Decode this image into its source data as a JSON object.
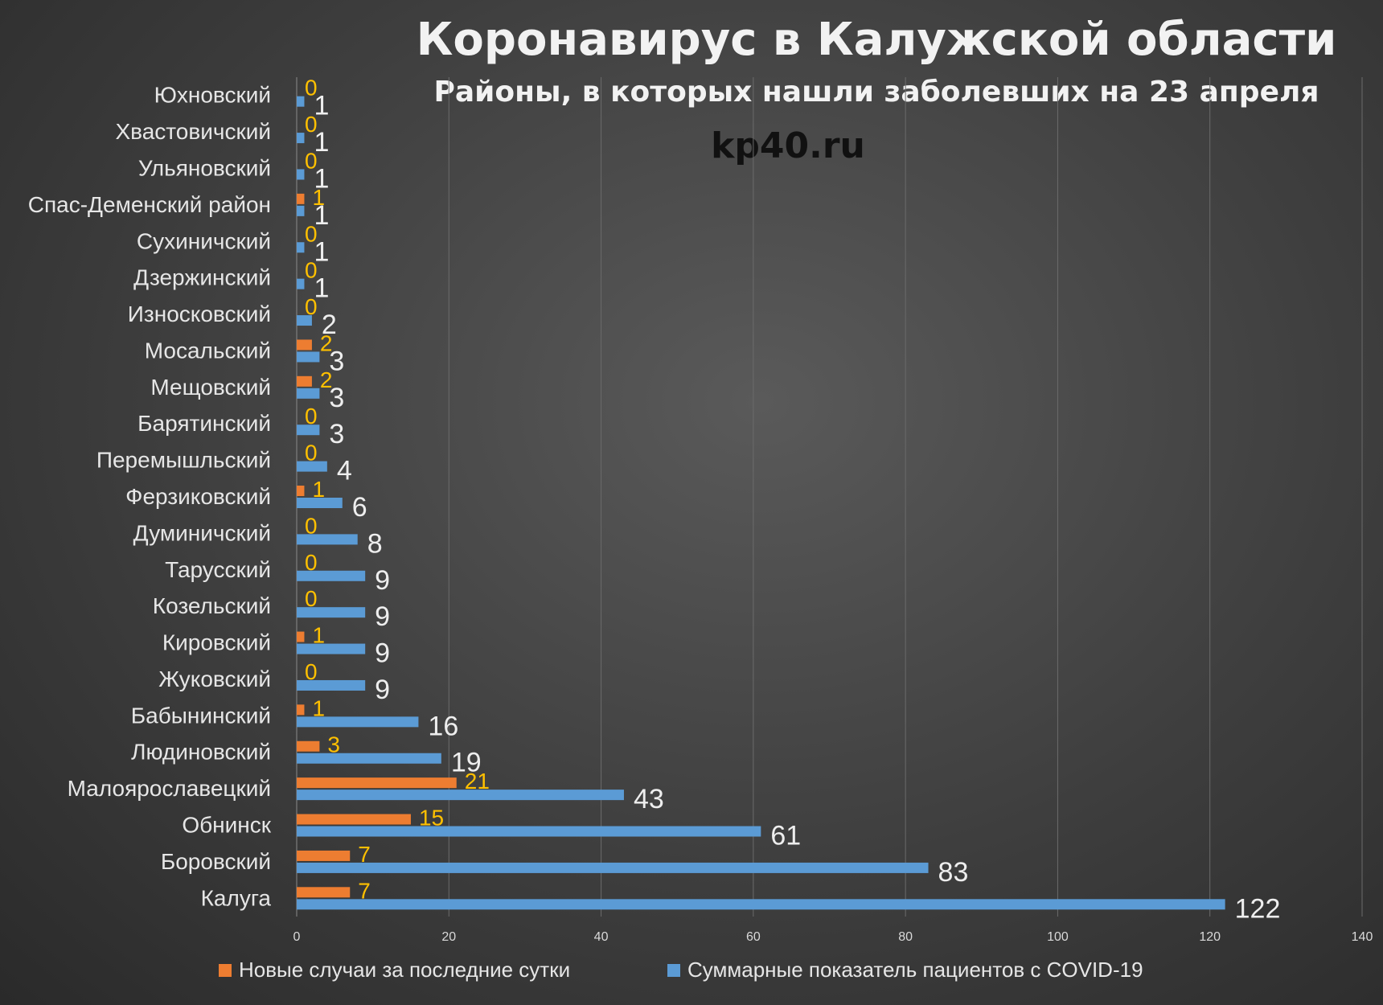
{
  "chart_data": {
    "type": "bar",
    "orientation": "horizontal",
    "title": "Коронавирус в Калужской области",
    "subtitle": "Районы, в которых нашли заболевших на 23 апреля",
    "watermark": "kp40.ru",
    "categories": [
      "Юхновский",
      "Хвастовичский",
      "Ульяновский",
      "Спас-Деменский район",
      "Сухиничский",
      "Дзержинский",
      "Износковский",
      "Мосальский",
      "Мещовский",
      "Барятинский",
      "Перемышльский",
      "Ферзиковский",
      "Думиничский",
      "Тарусский",
      "Козельский",
      "Кировский",
      "Жуковский",
      "Бабынинский",
      "Людиновский",
      "Малоярославецкий",
      "Обнинск",
      "Боровский",
      "Калуга"
    ],
    "series": [
      {
        "name": "Новые случаи за последние сутки",
        "color": "#ed7d31",
        "label_color": "#ffc000",
        "values": [
          0,
          0,
          0,
          1,
          0,
          0,
          0,
          2,
          2,
          0,
          0,
          1,
          0,
          0,
          0,
          1,
          0,
          1,
          3,
          21,
          15,
          7,
          7
        ]
      },
      {
        "name": "Суммарные показатель пациентов с COVID-19",
        "color": "#5b9bd5",
        "label_color": "#eeeeee",
        "values": [
          1,
          1,
          1,
          1,
          1,
          1,
          2,
          3,
          3,
          3,
          4,
          6,
          8,
          9,
          9,
          9,
          9,
          16,
          19,
          43,
          61,
          83,
          122
        ]
      }
    ],
    "xlim": [
      0,
      140
    ],
    "xticks": [
      0,
      20,
      40,
      60,
      80,
      100,
      120,
      140
    ],
    "grid": true,
    "legend": "bottom"
  }
}
